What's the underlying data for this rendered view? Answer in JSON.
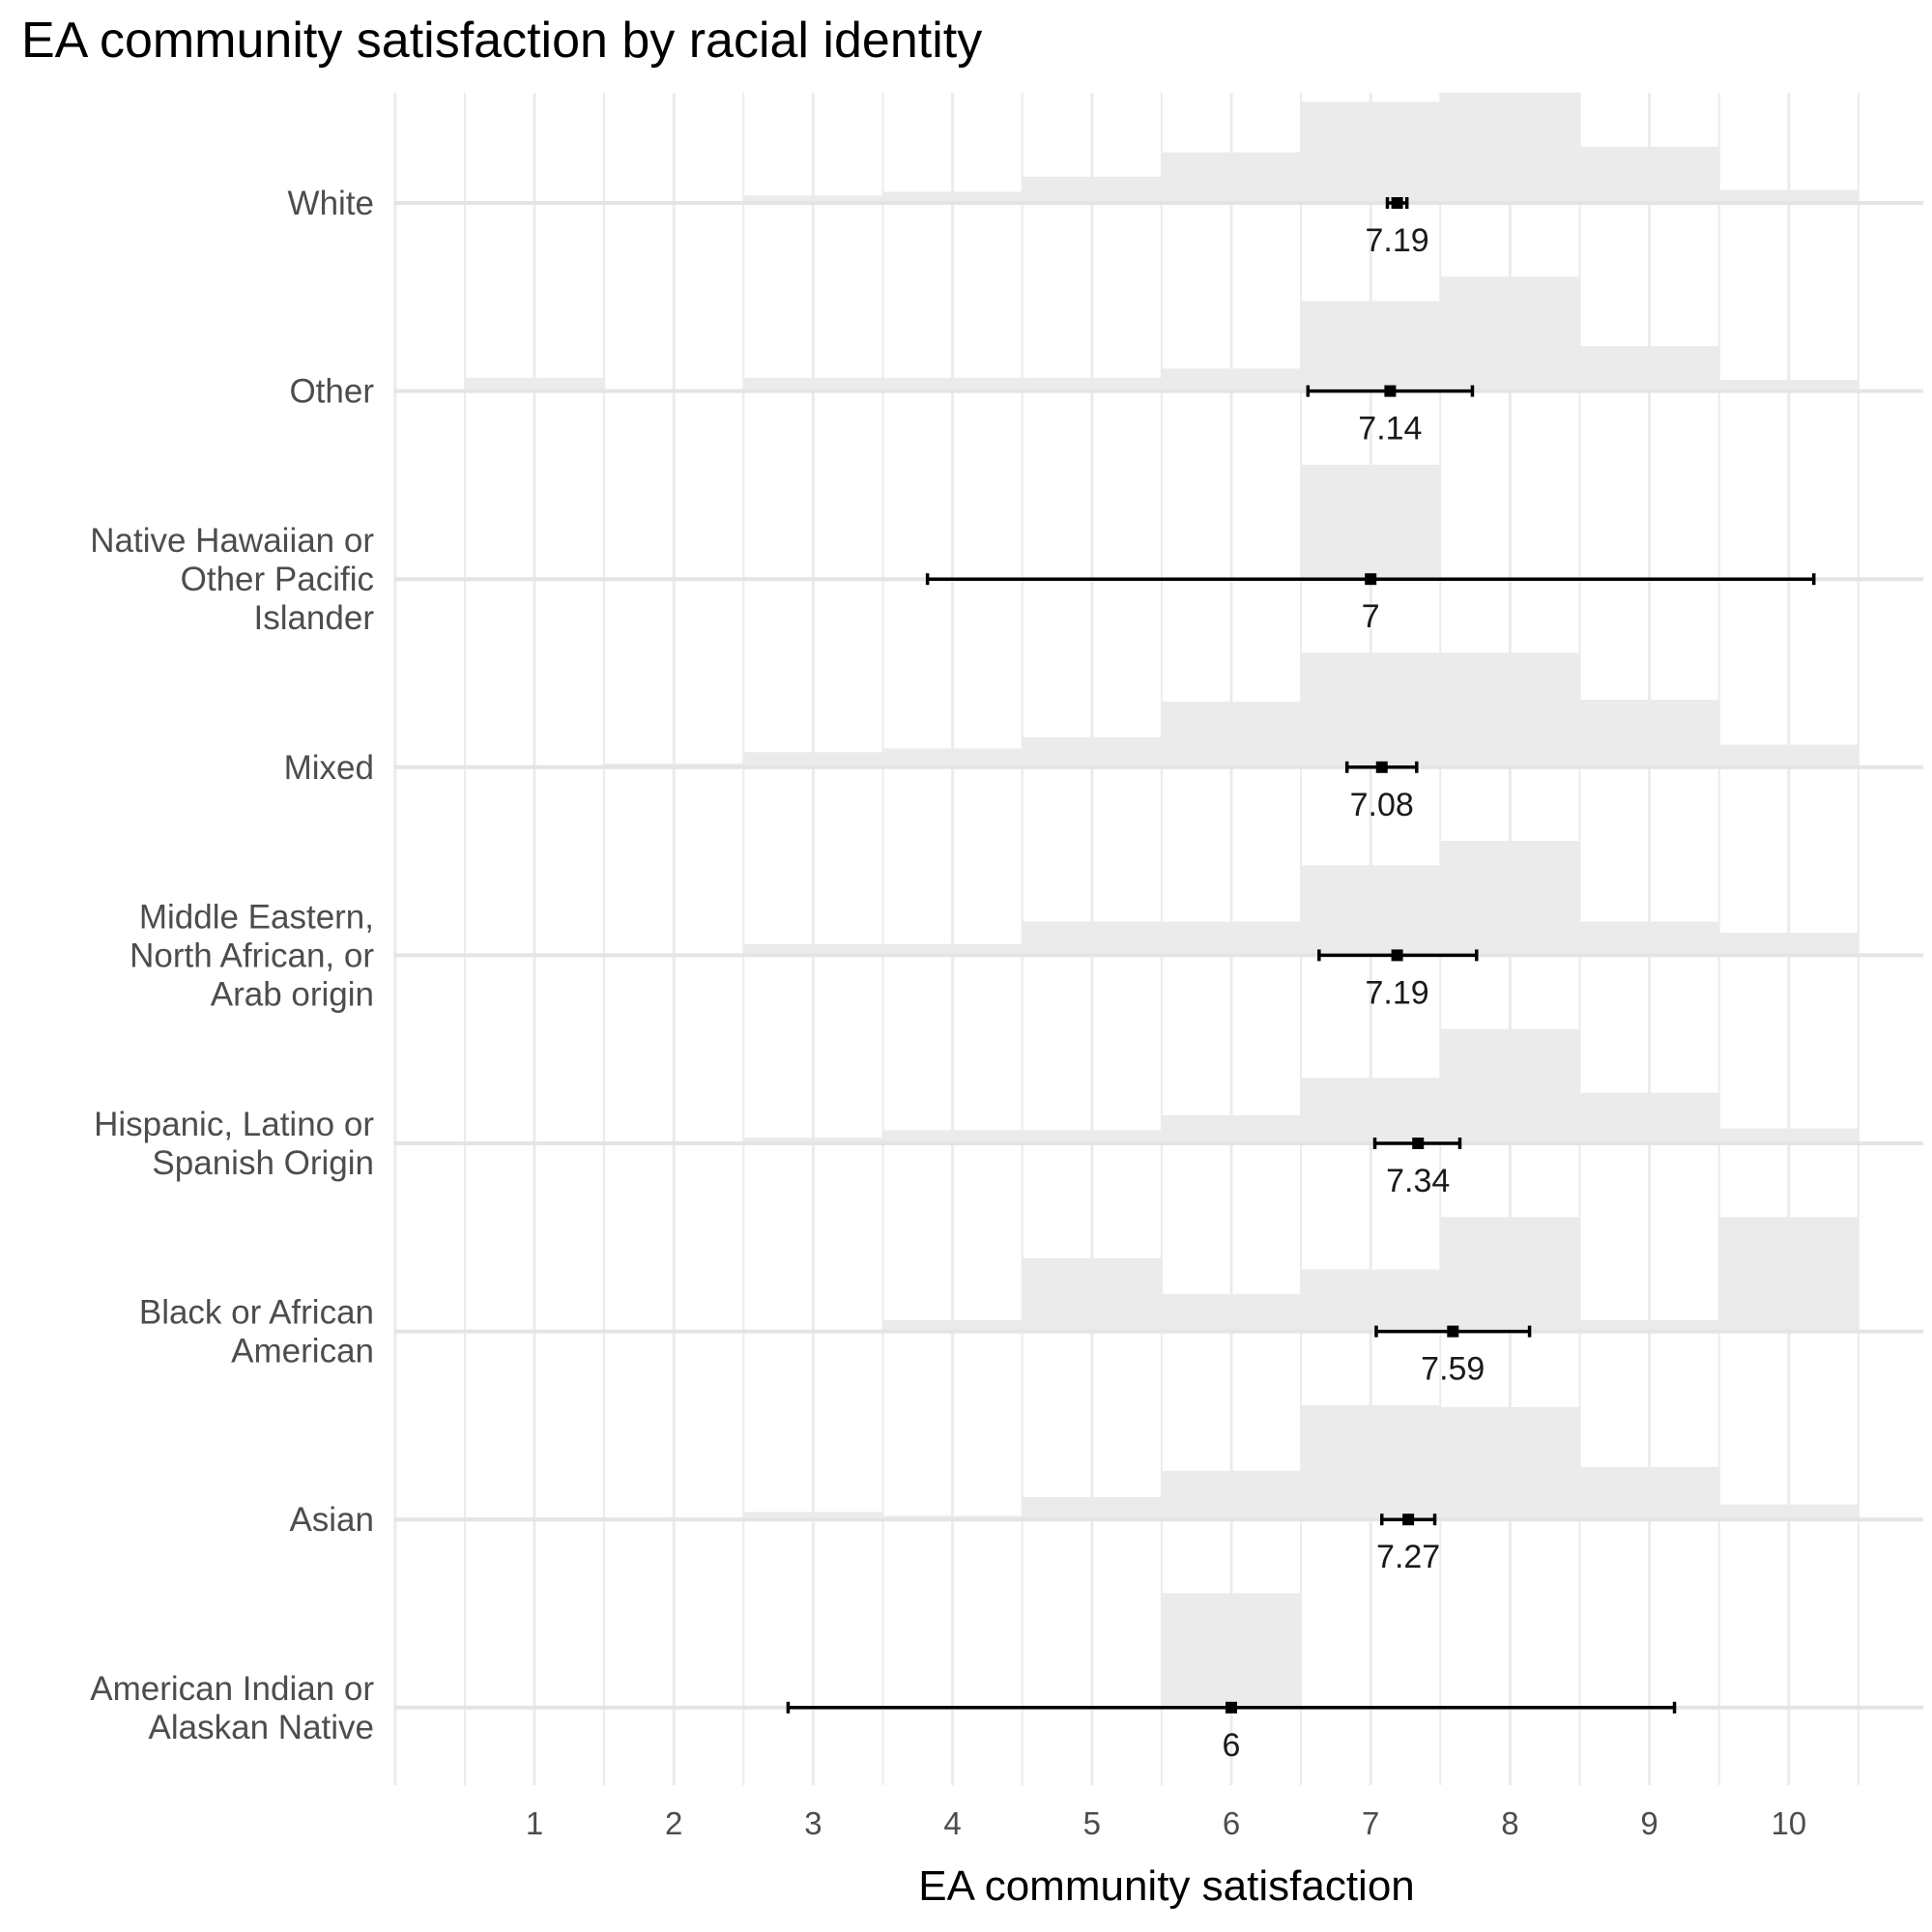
{
  "chart_data": {
    "type": "histogram-ridge-with-mean-ci",
    "title": "EA community satisfaction by racial identity",
    "xlabel": "EA community satisfaction",
    "ylabel": "",
    "x_ticks": [
      1,
      2,
      3,
      4,
      5,
      6,
      7,
      8,
      9,
      10
    ],
    "xlim": [
      0,
      11
    ],
    "grid": true,
    "bins": [
      1,
      2,
      3,
      4,
      5,
      6,
      7,
      8,
      9,
      10
    ],
    "groups": [
      {
        "name": "White",
        "label_lines": [
          "White"
        ],
        "mean": 7.19,
        "mean_label": "7.19",
        "ci": [
          7.12,
          7.26
        ],
        "hist": [
          0.01,
          0.01,
          0.04,
          0.06,
          0.14,
          0.27,
          0.54,
          0.59,
          0.3,
          0.07
        ]
      },
      {
        "name": "Other",
        "label_lines": [
          "Other"
        ],
        "mean": 7.14,
        "mean_label": "7.14",
        "ci": [
          6.55,
          7.73
        ],
        "hist": [
          0.07,
          0.0,
          0.07,
          0.07,
          0.07,
          0.12,
          0.48,
          0.61,
          0.24,
          0.06
        ]
      },
      {
        "name": "Native Hawaiian or Other Pacific Islander",
        "label_lines": [
          "Native Hawaiian or",
          "Other Pacific",
          "Islander"
        ],
        "mean": 7,
        "mean_label": "7",
        "ci": [
          3.82,
          10.18
        ],
        "hist": [
          0,
          0,
          0,
          0,
          0,
          0,
          0.61,
          0,
          0,
          0
        ]
      },
      {
        "name": "Mixed",
        "label_lines": [
          "Mixed"
        ],
        "mean": 7.08,
        "mean_label": "7.08",
        "ci": [
          6.83,
          7.33
        ],
        "hist": [
          0.01,
          0.02,
          0.08,
          0.1,
          0.16,
          0.35,
          0.61,
          0.61,
          0.36,
          0.12
        ]
      },
      {
        "name": "Middle Eastern, North African, or Arab origin",
        "label_lines": [
          "Middle Eastern,",
          "North African, or",
          "Arab origin"
        ],
        "mean": 7.19,
        "mean_label": "7.19",
        "ci": [
          6.63,
          7.76
        ],
        "hist": [
          0,
          0,
          0.06,
          0.06,
          0.18,
          0.18,
          0.48,
          0.61,
          0.18,
          0.12
        ]
      },
      {
        "name": "Hispanic, Latino or Spanish Origin",
        "label_lines": [
          "Hispanic, Latino or",
          "Spanish Origin"
        ],
        "mean": 7.34,
        "mean_label": "7.34",
        "ci": [
          7.03,
          7.64
        ],
        "hist": [
          0.01,
          0.01,
          0.03,
          0.07,
          0.07,
          0.15,
          0.35,
          0.61,
          0.27,
          0.08
        ]
      },
      {
        "name": "Black or African American",
        "label_lines": [
          "Black or African",
          "American"
        ],
        "mean": 7.59,
        "mean_label": "7.59",
        "ci": [
          7.04,
          8.14
        ],
        "hist": [
          0,
          0,
          0,
          0.06,
          0.39,
          0.2,
          0.33,
          0.61,
          0.06,
          0.61
        ]
      },
      {
        "name": "Asian",
        "label_lines": [
          "Asian"
        ],
        "mean": 7.27,
        "mean_label": "7.27",
        "ci": [
          7.08,
          7.46
        ],
        "hist": [
          0.01,
          0.0,
          0.04,
          0.02,
          0.12,
          0.26,
          0.61,
          0.6,
          0.28,
          0.08
        ]
      },
      {
        "name": "American Indian or Alaskan Native",
        "label_lines": [
          "American Indian or",
          "Alaskan Native"
        ],
        "mean": 6,
        "mean_label": "6",
        "ci": [
          2.82,
          9.18
        ],
        "hist": [
          0,
          0,
          0,
          0,
          0,
          0.61,
          0,
          0,
          0,
          0
        ]
      }
    ]
  }
}
